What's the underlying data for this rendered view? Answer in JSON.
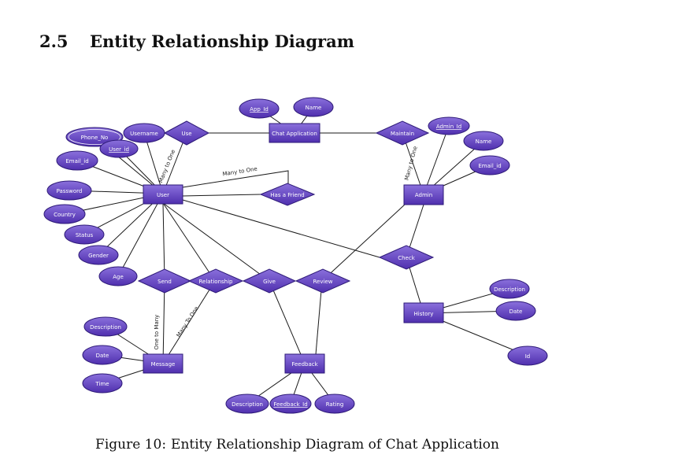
{
  "section": {
    "number": "2.5",
    "title": "Entity Relationship Diagram"
  },
  "caption": {
    "prefix": "Figure 10:",
    "text": "Entity Relationship Diagram of Chat Application"
  },
  "colors": {
    "fill": "#5a3bb5",
    "fill_light": "#8a70dc",
    "stroke": "#2e1a78",
    "line": "#1a1a1a"
  },
  "diagram": {
    "entities": {
      "user": "User",
      "chat_app": "Chat Application",
      "admin": "Admin",
      "message": "Message",
      "feedback": "Feedback",
      "history": "History"
    },
    "relationships": {
      "use": "Use",
      "maintain": "Maintain",
      "has_friend": "Has a Friend",
      "check": "Check",
      "send": "Send",
      "relationship": "Relationship",
      "give": "Give",
      "review": "Review"
    },
    "attributes": {
      "app_id": "App_Id",
      "chat_name": "Name",
      "phone_no": "Phone_No",
      "user_id": "User_id",
      "username": "Username",
      "email_id": "Email_id",
      "password": "Password",
      "country": "Country",
      "status": "Status",
      "gender": "Gender",
      "age": "Age",
      "admin_id": "Admin_Id",
      "admin_name": "Name",
      "admin_email": "Email_id",
      "hist_description": "Description",
      "hist_date": "Date",
      "hist_id": "Id",
      "msg_description": "Description",
      "msg_date": "Date",
      "msg_time": "Time",
      "fb_description": "Description",
      "fb_id": "Feedback_Id",
      "fb_rating": "Rating"
    },
    "cardinalities": {
      "user_use": "Many to One",
      "user_friend": "Many to One",
      "admin_maintain": "Many to One",
      "send_message": "One to Many",
      "relationship_message": "Many To One"
    }
  }
}
